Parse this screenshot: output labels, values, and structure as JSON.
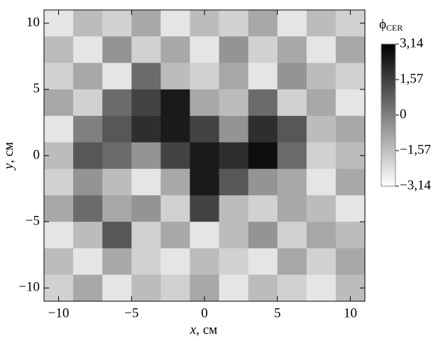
{
  "chart_data": {
    "type": "heatmap",
    "xlabel": {
      "symbol": "x",
      "unit": ", см"
    },
    "ylabel": {
      "symbol": "y",
      "unit": ", см"
    },
    "colorbar_title": {
      "symbol": "ϕ",
      "subscript": "CER"
    },
    "x": [
      -10,
      -8,
      -6,
      -4,
      -2,
      0,
      2,
      4,
      6,
      8,
      10
    ],
    "y": [
      10,
      8,
      6,
      4,
      2,
      0,
      -2,
      -4,
      -6,
      -8,
      -10
    ],
    "z": [
      [
        -2.5,
        -1.5,
        -2,
        -1,
        -2.5,
        -1.5,
        -2,
        -1,
        -2.5,
        -1.5,
        -2
      ],
      [
        -1.5,
        -2.5,
        -0.5,
        -2,
        -1,
        -2.5,
        -0.5,
        -2,
        -1,
        -2.5,
        -1
      ],
      [
        -2,
        -1,
        -2.5,
        0.5,
        -1.5,
        -2,
        -1,
        -2.5,
        -0.5,
        -1.5,
        -2
      ],
      [
        -1,
        -2,
        0.5,
        1.5,
        2.5,
        -1,
        -1.5,
        0.5,
        -2,
        -1,
        -2.5
      ],
      [
        -2.5,
        0,
        1,
        2,
        2.5,
        1.5,
        -0.5,
        2,
        1,
        -1.5,
        -1
      ],
      [
        -1.5,
        1,
        0.5,
        -0.5,
        1.5,
        2.5,
        2,
        2.8,
        0.5,
        -2,
        -1.5
      ],
      [
        -2,
        -0.5,
        -1.5,
        -2.5,
        -1,
        2.5,
        1,
        -0.5,
        -1,
        -2.5,
        -1
      ],
      [
        -1,
        0.5,
        -1,
        -0.5,
        -2,
        1.5,
        -1.5,
        -2,
        -1,
        -1.5,
        -2.5
      ],
      [
        -2.5,
        -1.5,
        1,
        -2,
        -1,
        -2.5,
        -1.5,
        -0.5,
        -2,
        -1,
        -1.5
      ],
      [
        -1.5,
        -2.5,
        -1,
        -2,
        -2.5,
        -1.5,
        -2,
        -2.5,
        -1,
        -2,
        -1
      ],
      [
        -2,
        -1,
        -2.5,
        -1.5,
        -2,
        -1,
        -2.5,
        -1.5,
        -2,
        -2.5,
        -1.5
      ]
    ],
    "xlim": [
      -11,
      11
    ],
    "ylim": [
      -11,
      11
    ],
    "xticks": [
      {
        "value": -10,
        "label": "−10"
      },
      {
        "value": -5,
        "label": "−5"
      },
      0,
      5,
      10
    ],
    "yticks": [
      {
        "value": -10,
        "label": "−10"
      },
      {
        "value": -5,
        "label": "−5"
      },
      0,
      5,
      10
    ],
    "zlim": [
      -3.14,
      3.14
    ],
    "zticks": [
      {
        "value": 3.14,
        "label": "3,14"
      },
      {
        "value": 1.57,
        "label": "1,57"
      },
      0,
      {
        "value": -1.57,
        "label": "−1,57"
      },
      {
        "value": -3.14,
        "label": "−3,14"
      }
    ],
    "colormap": [
      "#ffffff",
      "#000000"
    ]
  }
}
